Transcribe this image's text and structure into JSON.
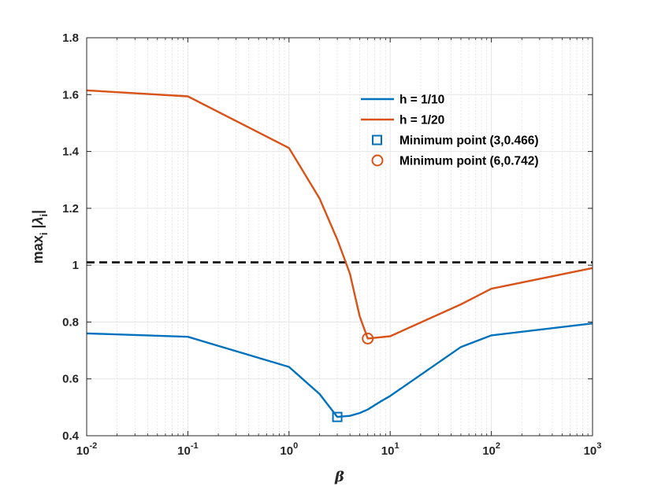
{
  "chart_data": {
    "type": "line",
    "xscale": "log",
    "xlim": [
      0.01,
      1000
    ],
    "ylim": [
      0.4,
      1.8
    ],
    "xlabel": "β",
    "ylabel": "max_i |λ_i|",
    "x_tick_labels": [
      {
        "base": "10",
        "exp": "-2"
      },
      {
        "base": "10",
        "exp": "-1"
      },
      {
        "base": "10",
        "exp": "0"
      },
      {
        "base": "10",
        "exp": "1"
      },
      {
        "base": "10",
        "exp": "2"
      },
      {
        "base": "10",
        "exp": "3"
      }
    ],
    "x_tick_values": [
      0.01,
      0.1,
      1,
      10,
      100,
      1000
    ],
    "y_ticks": [
      0.4,
      0.6,
      0.8,
      1,
      1.2,
      1.4,
      1.6,
      1.8
    ],
    "y_tick_labels": [
      "0.4",
      "0.6",
      "0.8",
      "1",
      "1.2",
      "1.4",
      "1.6",
      "1.8"
    ],
    "grid": true,
    "legend_position": "top-right",
    "reference_line": {
      "y": 1.01,
      "style": "dashed",
      "color": "#000000"
    },
    "series": [
      {
        "name": "h = 1/10",
        "color": "#0072BD",
        "x": [
          0.01,
          0.1,
          1,
          2,
          3,
          4,
          5,
          6,
          8,
          10,
          50,
          100,
          1000
        ],
        "y": [
          0.76,
          0.748,
          0.642,
          0.547,
          0.466,
          0.47,
          0.48,
          0.492,
          0.52,
          0.54,
          0.712,
          0.753,
          0.795
        ]
      },
      {
        "name": "h = 1/20",
        "color": "#D95319",
        "x": [
          0.01,
          0.1,
          1,
          2,
          3,
          4,
          5,
          6,
          10,
          50,
          100,
          1000
        ],
        "y": [
          1.615,
          1.594,
          1.412,
          1.235,
          1.09,
          0.97,
          0.82,
          0.742,
          0.75,
          0.862,
          0.917,
          0.99
        ]
      }
    ],
    "markers": [
      {
        "name": "Minimum point (3,0.466)",
        "x": 3,
        "y": 0.466,
        "shape": "square",
        "color": "#0072BD"
      },
      {
        "name": "Minimum point (6,0.742)",
        "x": 6,
        "y": 0.742,
        "shape": "circle",
        "color": "#D95319"
      }
    ]
  }
}
